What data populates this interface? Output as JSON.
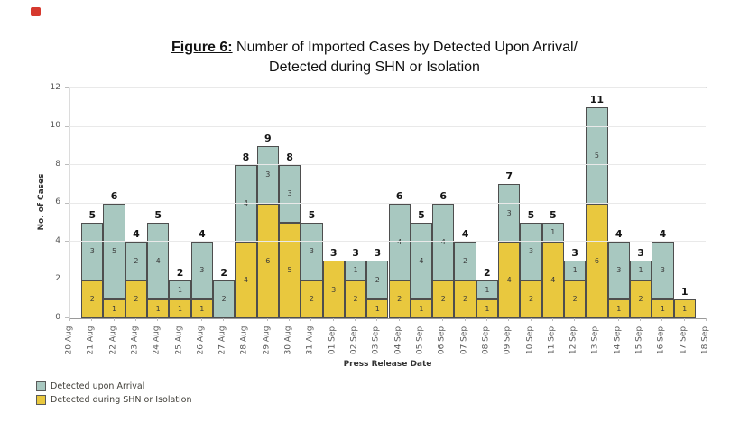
{
  "title": {
    "figure_label": "Figure 6:",
    "line1_rest": " Number of Imported Cases by Detected Upon Arrival/",
    "line2": "Detected during SHN or Isolation"
  },
  "y_axis": {
    "title": "No. of Cases"
  },
  "x_axis": {
    "title": "Press Release Date"
  },
  "legend": {
    "items": [
      {
        "label": "Detected upon Arrival",
        "color": "#a8c8c0"
      },
      {
        "label": "Detected during SHN or Isolation",
        "color": "#e9c83e"
      }
    ]
  },
  "corner_icon": "red-marker",
  "chart_data": {
    "type": "bar",
    "stacked": true,
    "title": "Figure 6: Number of Imported Cases by Detected Upon Arrival/ Detected during SHN or Isolation",
    "xlabel": "Press Release Date",
    "ylabel": "No. of Cases",
    "ylim": [
      0,
      12
    ],
    "yticks": [
      0,
      2,
      4,
      6,
      8,
      10,
      12
    ],
    "grid": "horizontal",
    "legend_position": "bottom-left",
    "categories": [
      "20 Aug",
      "21 Aug",
      "22 Aug",
      "23 Aug",
      "24 Aug",
      "25 Aug",
      "26 Aug",
      "27 Aug",
      "28 Aug",
      "29 Aug",
      "30 Aug",
      "31 Aug",
      "01 Sep",
      "02 Sep",
      "03 Sep",
      "04 Sep",
      "05 Sep",
      "06 Sep",
      "07 Sep",
      "08 Sep",
      "09 Sep",
      "10 Sep",
      "11 Sep",
      "12 Sep",
      "13 Sep",
      "14 Sep",
      "15 Sep",
      "16 Sep",
      "17 Sep",
      "18 Sep"
    ],
    "series": [
      {
        "name": "Detected upon Arrival",
        "color": "#a8c8c0",
        "values": [
          0,
          3,
          5,
          2,
          4,
          1,
          3,
          2,
          4,
          3,
          3,
          3,
          0,
          1,
          2,
          4,
          4,
          4,
          2,
          1,
          3,
          3,
          1,
          1,
          5,
          3,
          1,
          3,
          0,
          0
        ]
      },
      {
        "name": "Detected during SHN or Isolation",
        "color": "#e9c83e",
        "values": [
          0,
          2,
          1,
          2,
          1,
          1,
          1,
          0,
          4,
          6,
          5,
          2,
          3,
          2,
          1,
          2,
          1,
          2,
          2,
          1,
          4,
          2,
          4,
          2,
          6,
          1,
          2,
          1,
          1,
          0
        ]
      }
    ],
    "totals": [
      0,
      5,
      6,
      4,
      5,
      2,
      4,
      2,
      8,
      9,
      8,
      5,
      3,
      3,
      3,
      6,
      5,
      6,
      4,
      2,
      7,
      5,
      5,
      3,
      11,
      4,
      3,
      4,
      1,
      0
    ]
  }
}
